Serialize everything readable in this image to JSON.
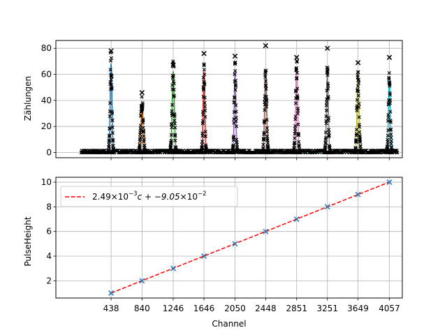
{
  "chart_data": [
    {
      "type": "scatter",
      "ylabel": "Zählungen",
      "xlabel": "",
      "ylim": [
        -4,
        86
      ],
      "yticks": [
        0,
        20,
        40,
        60,
        80
      ],
      "xticks": [
        438,
        840,
        1246,
        1646,
        2050,
        2448,
        2851,
        3251,
        3649,
        4057
      ],
      "grid": true,
      "marker": "x",
      "peaks": [
        {
          "center": 438,
          "height": 68,
          "max_marker": 78,
          "sigma": 12,
          "color": "#1f77b4"
        },
        {
          "center": 840,
          "height": 38,
          "max_marker": 46,
          "sigma": 15,
          "color": "#ff7f0e"
        },
        {
          "center": 1246,
          "height": 62,
          "max_marker": 67,
          "sigma": 14,
          "color": "#2ca02c"
        },
        {
          "center": 1646,
          "height": 62,
          "max_marker": 76,
          "sigma": 11,
          "color": "#d62728"
        },
        {
          "center": 2050,
          "height": 62,
          "max_marker": 74,
          "sigma": 11,
          "color": "#9467bd"
        },
        {
          "center": 2448,
          "height": 60,
          "max_marker": 82,
          "sigma": 13,
          "color": "#8c564b"
        },
        {
          "center": 2851,
          "height": 65,
          "max_marker": 73,
          "sigma": 13,
          "color": "#e377c2"
        },
        {
          "center": 3251,
          "height": 60,
          "max_marker": 80,
          "sigma": 12,
          "color": "#7f7f7f"
        },
        {
          "center": 3649,
          "height": 59,
          "max_marker": 69,
          "sigma": 13,
          "color": "#bcbd22"
        },
        {
          "center": 4057,
          "height": 57,
          "max_marker": 73,
          "sigma": 12,
          "color": "#17becf"
        }
      ],
      "baseline_level": 1.5,
      "x_range": [
        50,
        4160
      ]
    },
    {
      "type": "scatter",
      "xlabel": "Channel",
      "ylabel": "PulseHeight",
      "ylim": [
        0.6,
        10.4
      ],
      "yticks": [
        2,
        4,
        6,
        8,
        10
      ],
      "xticks": [
        438,
        840,
        1246,
        1646,
        2050,
        2448,
        2851,
        3251,
        3649,
        4057
      ],
      "grid": true,
      "series": [
        {
          "marker": "x",
          "color": "#1f77b4",
          "x": [
            438,
            840,
            1246,
            1646,
            2050,
            2448,
            2851,
            3251,
            3649,
            4057
          ],
          "y": [
            1,
            2,
            3,
            4,
            5,
            6,
            7,
            8,
            9,
            10
          ]
        }
      ],
      "fit": {
        "slope": 0.00249,
        "intercept": -0.0905,
        "color": "#ff0000",
        "style": "dashed",
        "x_range": [
          438,
          4057
        ]
      },
      "legend": {
        "placement": "top-left",
        "label_prefix": "2.49",
        "label_exp1": "−3",
        "label_mid": "c + −9.05",
        "label_exp2": "−2"
      }
    }
  ]
}
